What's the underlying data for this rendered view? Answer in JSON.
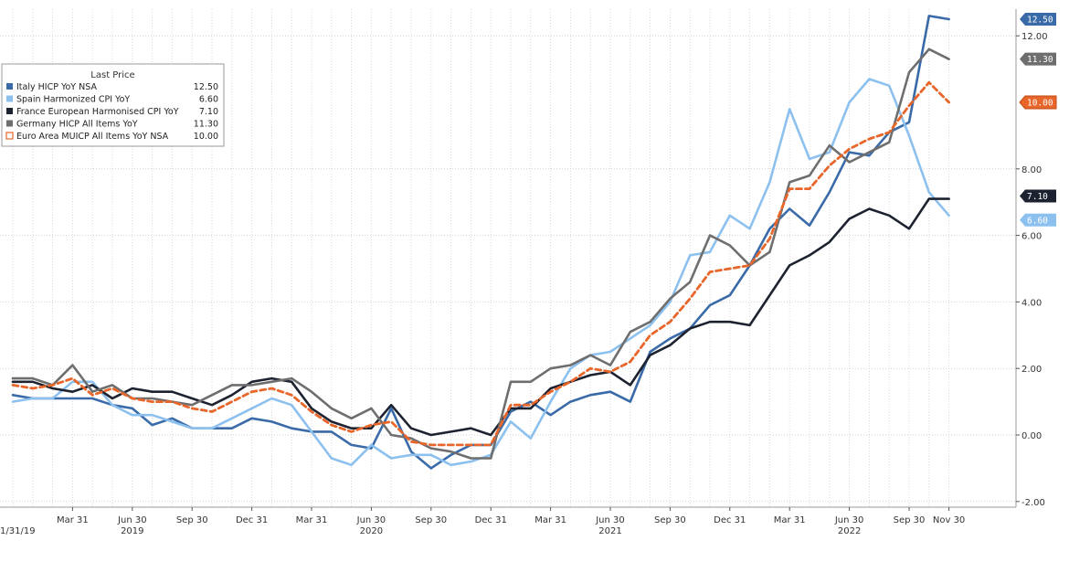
{
  "chart_data": {
    "type": "line",
    "title": "",
    "legend_title": "Last Price",
    "legend_position": "top-left",
    "grid": true,
    "ylim": [
      -2.5,
      12.8
    ],
    "y_ticks": [
      -2,
      0,
      2,
      4,
      6,
      8,
      12
    ],
    "y_tick_labels": [
      "-2.00",
      "0.00",
      "2.00",
      "4.00",
      "6.00",
      "8.00",
      "12.00"
    ],
    "quarter_ticks": [
      {
        "label": "Mar 31",
        "month": 3
      },
      {
        "label": "Jun 30",
        "month": 6
      },
      {
        "label": "Sep 30",
        "month": 9
      },
      {
        "label": "Dec 31",
        "month": 12
      },
      {
        "label": "Mar 31",
        "month": 15
      },
      {
        "label": "Jun 30",
        "month": 18
      },
      {
        "label": "Sep 30",
        "month": 21
      },
      {
        "label": "Dec 31",
        "month": 24
      },
      {
        "label": "Mar 31",
        "month": 27
      },
      {
        "label": "Jun 30",
        "month": 30
      },
      {
        "label": "Sep 30",
        "month": 33
      },
      {
        "label": "Dec 31",
        "month": 36
      },
      {
        "label": "Mar 31",
        "month": 39
      },
      {
        "label": "Jun 30",
        "month": 42
      },
      {
        "label": "Sep 30",
        "month": 45
      },
      {
        "label": "Nov 30",
        "month": 47
      }
    ],
    "year_labels": [
      {
        "label": "2019",
        "month": 6
      },
      {
        "label": "2020",
        "month": 18
      },
      {
        "label": "2021",
        "month": 30
      },
      {
        "label": "2022",
        "month": 42
      }
    ],
    "start_label": "1/31/19",
    "x": [
      "Dec 2018",
      "Jan 2019",
      "Feb 2019",
      "Mar 2019",
      "Apr 2019",
      "May 2019",
      "Jun 2019",
      "Jul 2019",
      "Aug 2019",
      "Sep 2019",
      "Oct 2019",
      "Nov 2019",
      "Dec 2019",
      "Jan 2020",
      "Feb 2020",
      "Mar 2020",
      "Apr 2020",
      "May 2020",
      "Jun 2020",
      "Jul 2020",
      "Aug 2020",
      "Sep 2020",
      "Oct 2020",
      "Nov 2020",
      "Dec 2020",
      "Jan 2021",
      "Feb 2021",
      "Mar 2021",
      "Apr 2021",
      "May 2021",
      "Jun 2021",
      "Jul 2021",
      "Aug 2021",
      "Sep 2021",
      "Oct 2021",
      "Nov 2021",
      "Dec 2021",
      "Jan 2022",
      "Feb 2022",
      "Mar 2022",
      "Apr 2022",
      "May 2022",
      "Jun 2022",
      "Jul 2022",
      "Aug 2022",
      "Sep 2022",
      "Oct 2022",
      "Nov 2022"
    ],
    "series": [
      {
        "name": "Italy HICP YoY NSA",
        "last": "12.50",
        "color": "#3a6aa8",
        "dash": false,
        "values": [
          1.2,
          1.1,
          1.1,
          1.1,
          1.1,
          0.9,
          0.8,
          0.3,
          0.5,
          0.2,
          0.2,
          0.2,
          0.5,
          0.4,
          0.2,
          0.1,
          0.1,
          -0.3,
          -0.4,
          0.8,
          -0.5,
          -1.0,
          -0.6,
          -0.3,
          -0.3,
          0.7,
          1.0,
          0.6,
          1.0,
          1.2,
          1.3,
          1.0,
          2.5,
          2.9,
          3.2,
          3.9,
          4.2,
          5.1,
          6.2,
          6.8,
          6.3,
          7.3,
          8.5,
          8.4,
          9.1,
          9.4,
          12.6,
          12.5
        ]
      },
      {
        "name": "Spain Harmonized CPI YoY",
        "last": "6.60",
        "color": "#8cc0ee",
        "dash": false,
        "values": [
          1.0,
          1.1,
          1.1,
          1.6,
          1.6,
          0.9,
          0.6,
          0.6,
          0.4,
          0.2,
          0.2,
          0.5,
          0.8,
          1.1,
          0.9,
          0.1,
          -0.7,
          -0.9,
          -0.3,
          -0.7,
          -0.6,
          -0.6,
          -0.9,
          -0.8,
          -0.6,
          0.4,
          -0.1,
          1.0,
          2.0,
          2.4,
          2.5,
          2.9,
          3.3,
          4.0,
          5.4,
          5.5,
          6.6,
          6.2,
          7.6,
          9.8,
          8.3,
          8.5,
          10.0,
          10.7,
          10.5,
          9.0,
          7.3,
          6.6
        ]
      },
      {
        "name": "France European Harmonised CPI YoY",
        "last": "7.10",
        "color": "#1c2230",
        "dash": false,
        "values": [
          1.6,
          1.6,
          1.4,
          1.3,
          1.5,
          1.1,
          1.4,
          1.3,
          1.3,
          1.1,
          0.9,
          1.2,
          1.6,
          1.7,
          1.6,
          0.8,
          0.4,
          0.2,
          0.2,
          0.9,
          0.2,
          0.0,
          0.1,
          0.2,
          0.0,
          0.8,
          0.8,
          1.4,
          1.6,
          1.8,
          1.9,
          1.5,
          2.4,
          2.7,
          3.2,
          3.4,
          3.4,
          3.3,
          4.2,
          5.1,
          5.4,
          5.8,
          6.5,
          6.8,
          6.6,
          6.2,
          7.1,
          7.1
        ]
      },
      {
        "name": "Germany HICP All Items YoY",
        "last": "11.30",
        "color": "#6e6e6e",
        "dash": false,
        "values": [
          1.7,
          1.7,
          1.5,
          2.1,
          1.3,
          1.5,
          1.1,
          1.1,
          1.0,
          0.9,
          1.2,
          1.5,
          1.5,
          1.6,
          1.7,
          1.3,
          0.8,
          0.5,
          0.8,
          0.0,
          -0.1,
          -0.4,
          -0.5,
          -0.7,
          -0.7,
          1.6,
          1.6,
          2.0,
          2.1,
          2.4,
          2.1,
          3.1,
          3.4,
          4.1,
          4.6,
          6.0,
          5.7,
          5.1,
          5.5,
          7.6,
          7.8,
          8.7,
          8.2,
          8.5,
          8.8,
          10.9,
          11.6,
          11.3
        ]
      },
      {
        "name": "Euro Area MUICP All Items YoY NSA",
        "last": "10.00",
        "color": "#e8662a",
        "dash": true,
        "values": [
          1.5,
          1.4,
          1.5,
          1.7,
          1.2,
          1.4,
          1.1,
          1.0,
          1.0,
          0.8,
          0.7,
          1.0,
          1.3,
          1.4,
          1.2,
          0.7,
          0.3,
          0.1,
          0.3,
          0.4,
          -0.2,
          -0.3,
          -0.3,
          -0.3,
          -0.3,
          0.9,
          0.9,
          1.3,
          1.6,
          2.0,
          1.9,
          2.2,
          3.0,
          3.4,
          4.1,
          4.9,
          5.0,
          5.1,
          5.9,
          7.4,
          7.4,
          8.1,
          8.6,
          8.9,
          9.1,
          9.9,
          10.6,
          10.0
        ]
      }
    ]
  }
}
